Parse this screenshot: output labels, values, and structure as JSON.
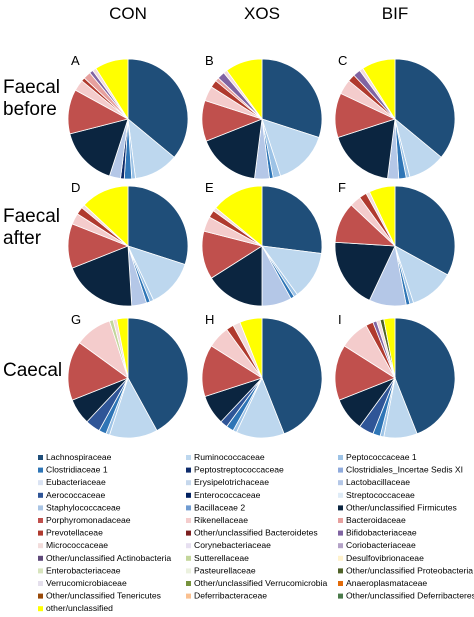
{
  "chart_data": {
    "type": "pie",
    "columns": [
      "CON",
      "XOS",
      "BIF"
    ],
    "rows": [
      "Faecal\nbefore",
      "Faecal\nafter",
      "Caecal"
    ],
    "legend_placement": "bottom",
    "legend": [
      {
        "name": "Lachnospiraceae",
        "color": "#1f4e79"
      },
      {
        "name": "Ruminococcaceae",
        "color": "#bdd7ee"
      },
      {
        "name": "Peptococcaceae 1",
        "color": "#9dc3e6"
      },
      {
        "name": "Clostridiaceae 1",
        "color": "#2e75b6"
      },
      {
        "name": "Peptostreptococcaceae",
        "color": "#0d2b6b"
      },
      {
        "name": "Clostridiales_Incertae Sedis XI",
        "color": "#8faadc"
      },
      {
        "name": "Eubacteriaceae",
        "color": "#dae3f3"
      },
      {
        "name": "Erysipelotrichaceae",
        "color": "#c5d7ec"
      },
      {
        "name": "Lactobacillaceae",
        "color": "#b4c7e7"
      },
      {
        "name": "Aerococcaceae",
        "color": "#2f5597"
      },
      {
        "name": "Enterococcaceae",
        "color": "#002060"
      },
      {
        "name": "Streptococcaceae",
        "color": "#deebf7"
      },
      {
        "name": "Staphylococcaceae",
        "color": "#a9c4e4"
      },
      {
        "name": "Bacillaceae 2",
        "color": "#6f9bd1"
      },
      {
        "name": "Other/unclassified Firmicutes",
        "color": "#0b2540"
      },
      {
        "name": "Porphyromonadaceae",
        "color": "#c0504d"
      },
      {
        "name": "Rikenellaceae",
        "color": "#f4cccc"
      },
      {
        "name": "Bacteroidaceae",
        "color": "#e6a09e"
      },
      {
        "name": "Prevotellaceae",
        "color": "#b03a2e"
      },
      {
        "name": "Other/unclassified Bacteroidetes",
        "color": "#7b1f1f"
      },
      {
        "name": "Bifidobacteriaceae",
        "color": "#8064a2"
      },
      {
        "name": "Micrococcaceae",
        "color": "#f2dcdb"
      },
      {
        "name": "Corynebacteriaceae",
        "color": "#e6dff0"
      },
      {
        "name": "Coriobacteriaceae",
        "color": "#b3a2c7"
      },
      {
        "name": "Other/unclassified Actinobacteria",
        "color": "#5f497a"
      },
      {
        "name": "Sutterellaceae",
        "color": "#c3d69b"
      },
      {
        "name": "Desulfovibrionaceae",
        "color": "#fff2cc"
      },
      {
        "name": "Enterobacteriaceae",
        "color": "#d7e4bd"
      },
      {
        "name": "Pasteurellaceae",
        "color": "#ebf1de"
      },
      {
        "name": "Other/unclassified Proteobacteria",
        "color": "#4f6228"
      },
      {
        "name": "Verrucomicrobiaceae",
        "color": "#e4dfec"
      },
      {
        "name": "Other/unclassified Verrucomicrobia",
        "color": "#76923c"
      },
      {
        "name": "Anaeroplasmataceae",
        "color": "#e26b0a"
      },
      {
        "name": "Other/unclassified Tenericutes",
        "color": "#984807"
      },
      {
        "name": "Deferribacteraceae",
        "color": "#fac090"
      },
      {
        "name": "Other/unclassified Deferribacteres",
        "color": "#4a7a4a"
      },
      {
        "name": "other/unclassified",
        "color": "#ffff00"
      }
    ],
    "pies": [
      {
        "label": "A",
        "slices": [
          {
            "name": "Lachnospiraceae",
            "value": 36
          },
          {
            "name": "Ruminococcaceae",
            "value": 12
          },
          {
            "name": "Peptococcaceae 1",
            "value": 1
          },
          {
            "name": "Clostridiaceae 1",
            "value": 2
          },
          {
            "name": "Peptostreptococcaceae",
            "value": 1
          },
          {
            "name": "Lactobacillaceae",
            "value": 3
          },
          {
            "name": "Other/unclassified Firmicutes",
            "value": 16
          },
          {
            "name": "Porphyromonadaceae",
            "value": 12
          },
          {
            "name": "Rikenellaceae",
            "value": 3
          },
          {
            "name": "Prevotellaceae",
            "value": 1
          },
          {
            "name": "Bacteroidaceae",
            "value": 2
          },
          {
            "name": "Bifidobacteriaceae",
            "value": 1
          },
          {
            "name": "Micrococcaceae",
            "value": 1
          },
          {
            "name": "other/unclassified",
            "value": 9
          }
        ]
      },
      {
        "label": "B",
        "slices": [
          {
            "name": "Lachnospiraceae",
            "value": 30
          },
          {
            "name": "Ruminococcaceae",
            "value": 15
          },
          {
            "name": "Peptococcaceae 1",
            "value": 2
          },
          {
            "name": "Clostridiaceae 1",
            "value": 1
          },
          {
            "name": "Lactobacillaceae",
            "value": 4
          },
          {
            "name": "Other/unclassified Firmicutes",
            "value": 17
          },
          {
            "name": "Porphyromonadaceae",
            "value": 11
          },
          {
            "name": "Rikenellaceae",
            "value": 4
          },
          {
            "name": "Prevotellaceae",
            "value": 2
          },
          {
            "name": "Bacteroidaceae",
            "value": 1
          },
          {
            "name": "Bifidobacteriaceae",
            "value": 2
          },
          {
            "name": "Micrococcaceae",
            "value": 1
          },
          {
            "name": "other/unclassified",
            "value": 10
          }
        ]
      },
      {
        "label": "C",
        "slices": [
          {
            "name": "Lachnospiraceae",
            "value": 36
          },
          {
            "name": "Ruminococcaceae",
            "value": 10
          },
          {
            "name": "Peptococcaceae 1",
            "value": 1
          },
          {
            "name": "Clostridiaceae 1",
            "value": 2
          },
          {
            "name": "Lactobacillaceae",
            "value": 3
          },
          {
            "name": "Other/unclassified Firmicutes",
            "value": 18
          },
          {
            "name": "Porphyromonadaceae",
            "value": 12
          },
          {
            "name": "Rikenellaceae",
            "value": 4
          },
          {
            "name": "Prevotellaceae",
            "value": 2
          },
          {
            "name": "Bifidobacteriaceae",
            "value": 2
          },
          {
            "name": "Micrococcaceae",
            "value": 1
          },
          {
            "name": "other/unclassified",
            "value": 9
          }
        ]
      },
      {
        "label": "D",
        "slices": [
          {
            "name": "Lachnospiraceae",
            "value": 30
          },
          {
            "name": "Ruminococcaceae",
            "value": 13
          },
          {
            "name": "Peptococcaceae 1",
            "value": 1
          },
          {
            "name": "Clostridiaceae 1",
            "value": 1
          },
          {
            "name": "Lactobacillaceae",
            "value": 4
          },
          {
            "name": "Other/unclassified Firmicutes",
            "value": 20
          },
          {
            "name": "Porphyromonadaceae",
            "value": 12
          },
          {
            "name": "Rikenellaceae",
            "value": 3
          },
          {
            "name": "Prevotellaceae",
            "value": 2
          },
          {
            "name": "Micrococcaceae",
            "value": 1
          },
          {
            "name": "other/unclassified",
            "value": 13
          }
        ]
      },
      {
        "label": "E",
        "slices": [
          {
            "name": "Lachnospiraceae",
            "value": 27
          },
          {
            "name": "Ruminococcaceae",
            "value": 13
          },
          {
            "name": "Peptococcaceae 1",
            "value": 1
          },
          {
            "name": "Clostridiaceae 1",
            "value": 1
          },
          {
            "name": "Lactobacillaceae",
            "value": 8
          },
          {
            "name": "Other/unclassified Firmicutes",
            "value": 16
          },
          {
            "name": "Porphyromonadaceae",
            "value": 13
          },
          {
            "name": "Rikenellaceae",
            "value": 4
          },
          {
            "name": "Prevotellaceae",
            "value": 2
          },
          {
            "name": "Micrococcaceae",
            "value": 1
          },
          {
            "name": "other/unclassified",
            "value": 14
          }
        ]
      },
      {
        "label": "F",
        "slices": [
          {
            "name": "Lachnospiraceae",
            "value": 33
          },
          {
            "name": "Ruminococcaceae",
            "value": 12
          },
          {
            "name": "Peptococcaceae 1",
            "value": 1
          },
          {
            "name": "Clostridiaceae 1",
            "value": 1
          },
          {
            "name": "Lactobacillaceae",
            "value": 10
          },
          {
            "name": "Other/unclassified Firmicutes",
            "value": 19
          },
          {
            "name": "Porphyromonadaceae",
            "value": 11
          },
          {
            "name": "Rikenellaceae",
            "value": 3
          },
          {
            "name": "Prevotellaceae",
            "value": 2
          },
          {
            "name": "Micrococcaceae",
            "value": 1
          },
          {
            "name": "other/unclassified",
            "value": 7
          }
        ]
      },
      {
        "label": "G",
        "slices": [
          {
            "name": "Lachnospiraceae",
            "value": 42
          },
          {
            "name": "Ruminococcaceae",
            "value": 13
          },
          {
            "name": "Peptococcaceae 1",
            "value": 1
          },
          {
            "name": "Clostridiaceae 1",
            "value": 2
          },
          {
            "name": "Aerococcaceae",
            "value": 4
          },
          {
            "name": "Other/unclassified Firmicutes",
            "value": 7
          },
          {
            "name": "Porphyromonadaceae",
            "value": 16
          },
          {
            "name": "Rikenellaceae",
            "value": 10
          },
          {
            "name": "Sutterellaceae",
            "value": 1
          },
          {
            "name": "Micrococcaceae",
            "value": 1
          },
          {
            "name": "other/unclassified",
            "value": 3
          }
        ]
      },
      {
        "label": "H",
        "slices": [
          {
            "name": "Lachnospiraceae",
            "value": 44
          },
          {
            "name": "Ruminococcaceae",
            "value": 13
          },
          {
            "name": "Peptococcaceae 1",
            "value": 1
          },
          {
            "name": "Clostridiaceae 1",
            "value": 2
          },
          {
            "name": "Aerococcaceae",
            "value": 2
          },
          {
            "name": "Other/unclassified Firmicutes",
            "value": 8
          },
          {
            "name": "Porphyromonadaceae",
            "value": 14
          },
          {
            "name": "Rikenellaceae",
            "value": 6
          },
          {
            "name": "Prevotellaceae",
            "value": 2
          },
          {
            "name": "Micrococcaceae",
            "value": 2
          },
          {
            "name": "other/unclassified",
            "value": 6
          }
        ]
      },
      {
        "label": "I",
        "slices": [
          {
            "name": "Lachnospiraceae",
            "value": 44
          },
          {
            "name": "Ruminococcaceae",
            "value": 9
          },
          {
            "name": "Peptococcaceae 1",
            "value": 1
          },
          {
            "name": "Clostridiaceae 1",
            "value": 2
          },
          {
            "name": "Aerococcaceae",
            "value": 4
          },
          {
            "name": "Other/unclassified Firmicutes",
            "value": 9
          },
          {
            "name": "Porphyromonadaceae",
            "value": 15
          },
          {
            "name": "Rikenellaceae",
            "value": 8
          },
          {
            "name": "Prevotellaceae",
            "value": 2
          },
          {
            "name": "Bifidobacteriaceae",
            "value": 1
          },
          {
            "name": "Micrococcaceae",
            "value": 1
          },
          {
            "name": "Other/unclassified Proteobacteria",
            "value": 1
          },
          {
            "name": "other/unclassified",
            "value": 3
          }
        ]
      }
    ]
  }
}
